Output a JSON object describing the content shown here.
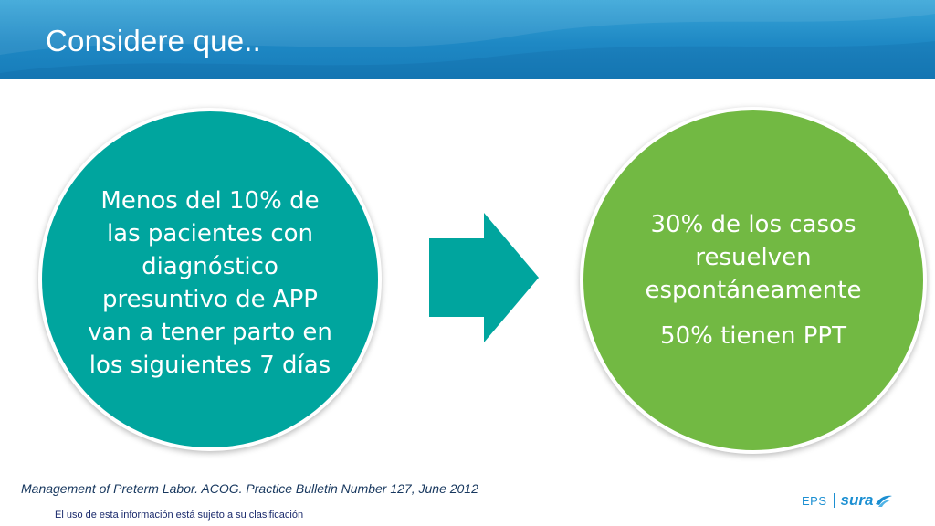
{
  "header": {
    "title": "Considere que.."
  },
  "left_circle": {
    "text": "Menos del 10% de las pacientes con diagnóstico presuntivo de APP van a tener parto en los siguientes 7 días",
    "color": "#00a59e"
  },
  "arrow": {
    "icon": "right-arrow-icon",
    "color": "#00a59e"
  },
  "right_circle": {
    "line_1": "30% de los casos resuelven espontáneamente",
    "line_2": "50% tienen PPT",
    "color": "#72b943"
  },
  "citation": "Management of Preterm Labor. ACOG. Practice Bulletin Number 127, June 2012",
  "footer_note": "El uso de esta información está sujeto a su clasificación",
  "logo": {
    "eps": "EPS",
    "brand": "sura",
    "icon": "sura-swoosh-icon"
  },
  "colors": {
    "header": "#1e88c4",
    "text_dark": "#17375e"
  }
}
